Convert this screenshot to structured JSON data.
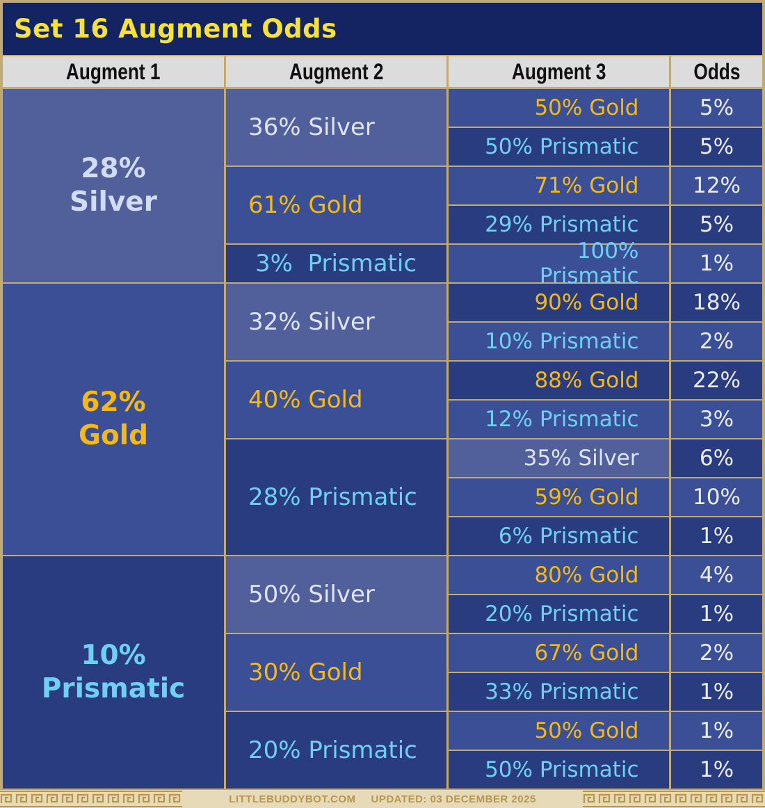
{
  "title": "Set 16 Augment Odds",
  "headers": [
    "Augment 1",
    "Augment 2",
    "Augment 3",
    "Odds"
  ],
  "augment1": [
    {
      "pct": "28%",
      "name": "Silver",
      "tier": "silver"
    },
    {
      "pct": "62%",
      "name": "Gold",
      "tier": "gold"
    },
    {
      "pct": "10%",
      "name": "Prismatic",
      "tier": "pris"
    }
  ],
  "augment2": [
    {
      "label": "36% Silver",
      "tier": "silver"
    },
    {
      "label": "61% Gold",
      "tier": "gold"
    },
    {
      "label": "3%  Prismatic",
      "tier": "pris"
    },
    {
      "label": "32% Silver",
      "tier": "silver"
    },
    {
      "label": "40% Gold",
      "tier": "gold"
    },
    {
      "label": "28% Prismatic",
      "tier": "pris"
    },
    {
      "label": "50% Silver",
      "tier": "silver"
    },
    {
      "label": "30% Gold",
      "tier": "gold"
    },
    {
      "label": "20% Prismatic",
      "tier": "pris"
    }
  ],
  "augment3": [
    {
      "label": "50% Gold",
      "tier": "gold",
      "odds": "5%"
    },
    {
      "label": "50% Prismatic",
      "tier": "pris",
      "odds": "5%"
    },
    {
      "label": "71% Gold",
      "tier": "gold",
      "odds": "12%"
    },
    {
      "label": "29% Prismatic",
      "tier": "pris",
      "odds": "5%"
    },
    {
      "label": "100% Prismatic",
      "tier": "pris",
      "odds": "1%"
    },
    {
      "label": "90% Gold",
      "tier": "gold",
      "odds": "18%"
    },
    {
      "label": "10% Prismatic",
      "tier": "pris",
      "odds": "2%"
    },
    {
      "label": "88% Gold",
      "tier": "gold",
      "odds": "22%"
    },
    {
      "label": "12% Prismatic",
      "tier": "pris",
      "odds": "3%"
    },
    {
      "label": "35% Silver",
      "tier": "silver",
      "odds": "6%"
    },
    {
      "label": "59% Gold",
      "tier": "gold",
      "odds": "10%"
    },
    {
      "label": "6% Prismatic",
      "tier": "pris",
      "odds": "1%"
    },
    {
      "label": "80% Gold",
      "tier": "gold",
      "odds": "4%"
    },
    {
      "label": "20% Prismatic",
      "tier": "pris",
      "odds": "1%"
    },
    {
      "label": "67% Gold",
      "tier": "gold",
      "odds": "2%"
    },
    {
      "label": "33% Prismatic",
      "tier": "pris",
      "odds": "1%"
    },
    {
      "label": "50% Gold",
      "tier": "gold",
      "odds": "1%"
    },
    {
      "label": "50% Prismatic",
      "tier": "pris",
      "odds": "1%"
    }
  ],
  "footer": {
    "site": "LITTLEBUDDYBOT.COM",
    "updated": "UPDATED: 03 DECEMBER 2025"
  },
  "colors": {
    "silver_bg": "#515f9b",
    "gold_bg": "#3b4f96",
    "prismatic_bg": "#2a3c80",
    "title_text": "#f7e23a",
    "border": "#c2aa72"
  }
}
